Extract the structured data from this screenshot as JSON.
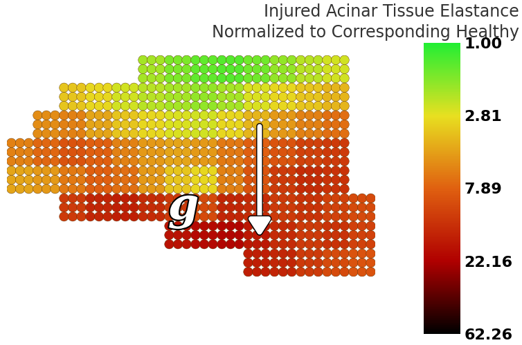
{
  "chart_data": {
    "type": "heatmap",
    "title": "Injured Acinar Tissue Elastance\nNormalized to Corresponding Healthy",
    "annotation": "g",
    "log": true,
    "cells": [
      [
        null,
        null,
        null,
        null,
        null,
        2.0,
        1.6,
        1.4,
        1.3,
        1.5,
        1.8,
        2.2,
        2.5,
        null
      ],
      [
        null,
        null,
        3.5,
        3.0,
        2.5,
        2.2,
        2.0,
        1.8,
        2.0,
        2.6,
        3.0,
        3.5,
        4.0,
        null
      ],
      [
        null,
        5.5,
        6.0,
        4.5,
        3.5,
        3.0,
        2.6,
        2.5,
        3.0,
        4.0,
        5.0,
        6.0,
        7.0,
        null
      ],
      [
        6.0,
        7.5,
        9.0,
        8.0,
        6.0,
        5.0,
        4.5,
        5.0,
        6.5,
        8.0,
        9.0,
        11.0,
        12.0,
        null
      ],
      [
        4.5,
        5.0,
        6.5,
        8.0,
        7.0,
        5.0,
        3.5,
        3.0,
        6.0,
        9.0,
        12.0,
        14.0,
        13.0,
        null
      ],
      [
        null,
        null,
        12.0,
        15.0,
        16.0,
        14.0,
        12.0,
        10.0,
        15.0,
        14.0,
        12.0,
        13.0,
        11.0,
        10.0
      ],
      [
        null,
        null,
        null,
        null,
        null,
        null,
        18.0,
        20.0,
        21.0,
        17.0,
        14.0,
        12.0,
        13.0,
        11.0
      ],
      [
        null,
        null,
        null,
        null,
        null,
        null,
        null,
        null,
        null,
        16.0,
        15.0,
        12.0,
        10.0,
        9.0
      ]
    ],
    "colorbar": {
      "range": [
        1.0,
        62.26
      ],
      "ticks": [
        {
          "value": 1.0,
          "label": "1.00"
        },
        {
          "value": 2.81,
          "label": "2.81"
        },
        {
          "value": 7.89,
          "label": "7.89"
        },
        {
          "value": 22.16,
          "label": "22.16"
        },
        {
          "value": 62.26,
          "label": "62.26"
        }
      ]
    }
  }
}
